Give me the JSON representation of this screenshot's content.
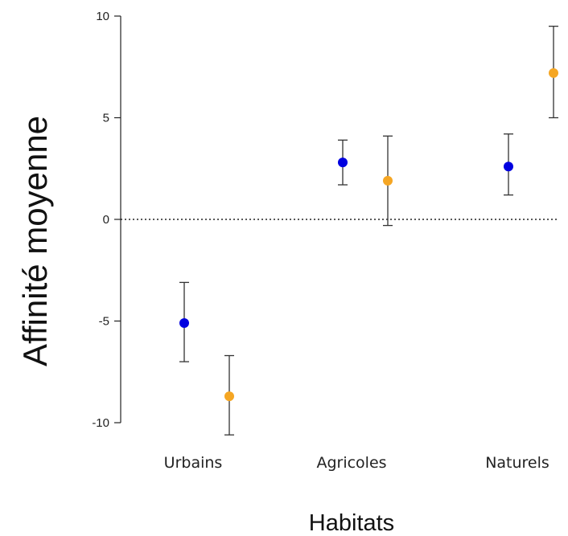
{
  "chart_data": {
    "type": "scatter",
    "xlabel": "Habitats",
    "ylabel": "Affinité moyenne",
    "categories": [
      "Urbains",
      "Agricoles",
      "Naturels"
    ],
    "ylim": [
      -10,
      10
    ],
    "yticks": [
      10,
      5,
      0,
      -5,
      -10
    ],
    "ytick_labels": [
      "10",
      "5",
      "0",
      "-5",
      "-10"
    ],
    "reference_line": {
      "y": 0,
      "style": "dotted"
    },
    "grid": false,
    "series": [
      {
        "color": "#0000e0",
        "points": [
          {
            "category": "Urbains",
            "y": -5.1,
            "low": -7.0,
            "high": -3.1
          },
          {
            "category": "Agricoles",
            "y": 2.8,
            "low": 1.7,
            "high": 3.9
          },
          {
            "category": "Naturels",
            "y": 2.6,
            "low": 1.2,
            "high": 4.2
          }
        ]
      },
      {
        "color": "#f5a623",
        "points": [
          {
            "category": "Urbains",
            "y": -8.7,
            "low": -10.6,
            "high": -6.7
          },
          {
            "category": "Agricoles",
            "y": 1.9,
            "low": -0.3,
            "high": 4.1
          },
          {
            "category": "Naturels",
            "y": 7.2,
            "low": 5.0,
            "high": 9.5
          }
        ]
      }
    ]
  }
}
